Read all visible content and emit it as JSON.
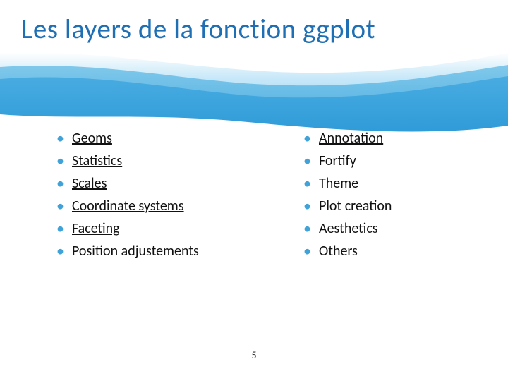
{
  "title": "Les layers de la fonction ggplot",
  "page_number": "5",
  "bullet_color": "#3fa3d9",
  "title_color": "#1f6fb5",
  "text_color": "#111111",
  "wave": {
    "light": "#99d4f2",
    "light_edge": "#ffffff",
    "mid": "#5bb5e6",
    "dark": "#2f9bd8"
  },
  "left_items": [
    {
      "label": "Geoms",
      "underlined": true
    },
    {
      "label": "Statistics",
      "underlined": true
    },
    {
      "label": "Scales",
      "underlined": true
    },
    {
      "label": "Coordinate systems",
      "underlined": true
    },
    {
      "label": "Faceting",
      "underlined": true
    },
    {
      "label": "Position adjustements",
      "underlined": false
    }
  ],
  "right_items": [
    {
      "label": "Annotation",
      "underlined": true
    },
    {
      "label": "Fortify",
      "underlined": false
    },
    {
      "label": "Theme",
      "underlined": false
    },
    {
      "label": "Plot creation",
      "underlined": false
    },
    {
      "label": "Aesthetics",
      "underlined": false
    },
    {
      "label": "Others",
      "underlined": false
    }
  ]
}
